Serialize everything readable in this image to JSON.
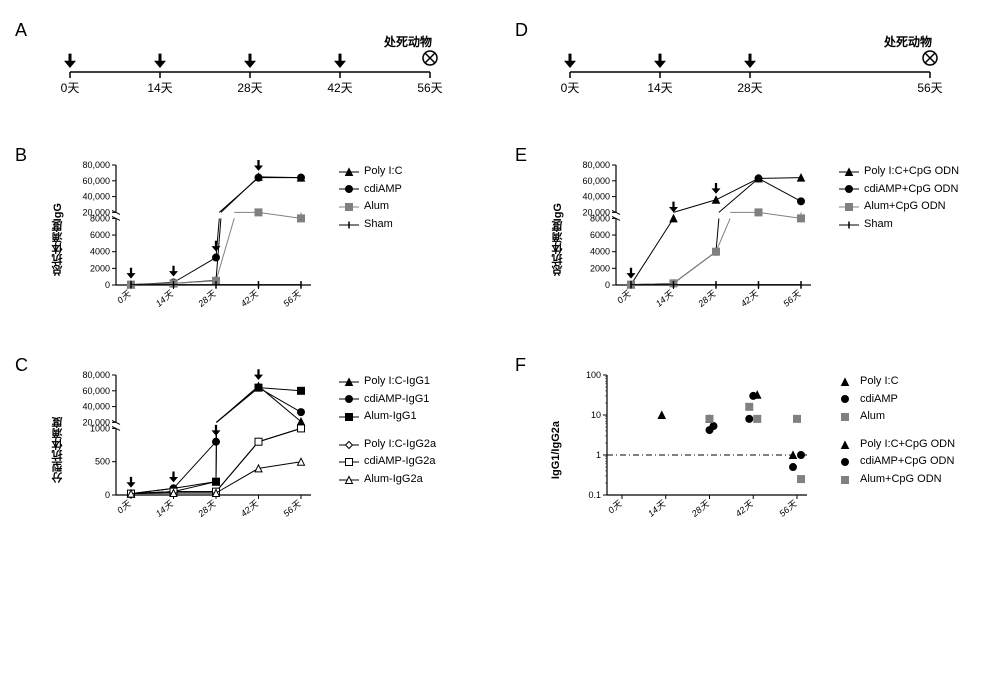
{
  "panelA": {
    "label": "A",
    "days": [
      "0天",
      "14天",
      "28天",
      "42天",
      "56天"
    ],
    "arrows_at": [
      0,
      14,
      28,
      42
    ],
    "end_label": "处死动物",
    "end_at": 56
  },
  "panelD": {
    "label": "D",
    "days": [
      "0天",
      "14天",
      "28天",
      "56天"
    ],
    "arrows_at": [
      0,
      14,
      28
    ],
    "end_label": "处死动物",
    "end_at": 56
  },
  "panelB": {
    "label": "B",
    "ylabel": "总抗体滴度IgG",
    "x_categories": [
      "0天",
      "14天",
      "28天",
      "42天",
      "56天"
    ],
    "y_break": true,
    "y_lower_max": 8000,
    "y_lower_ticks": [
      0,
      2000,
      4000,
      6000,
      8000
    ],
    "y_upper_min": 20000,
    "y_upper_max": 80000,
    "y_upper_ticks": [
      20000,
      40000,
      60000,
      80000
    ],
    "y_upper_tick_labels": [
      "20,000",
      "40,000",
      "60,000",
      "80,000"
    ],
    "legend": [
      {
        "label": "Poly I:C",
        "marker": "triangle",
        "filled": true
      },
      {
        "label": "cdiAMP",
        "marker": "circle",
        "filled": true
      },
      {
        "label": "Alum",
        "marker": "square",
        "filled": true,
        "gray": true
      },
      {
        "label": "Sham",
        "marker": "tick",
        "filled": true
      }
    ],
    "series": [
      {
        "name": "Poly I:C",
        "marker": "triangle",
        "filled": true,
        "points": [
          50,
          200,
          550,
          65000,
          64000
        ]
      },
      {
        "name": "cdiAMP",
        "marker": "circle",
        "filled": true,
        "points": [
          50,
          300,
          3300,
          64000,
          64000
        ]
      },
      {
        "name": "Alum",
        "marker": "square",
        "filled": true,
        "gray": true,
        "points": [
          50,
          200,
          500,
          18000,
          8000
        ]
      },
      {
        "name": "Sham",
        "marker": "tick",
        "filled": true,
        "points": [
          50,
          50,
          50,
          50,
          50
        ]
      }
    ],
    "arrows_at_x_idx": [
      0,
      1,
      2,
      3
    ]
  },
  "panelE": {
    "label": "E",
    "ylabel": "总抗体滴度IgG",
    "x_categories": [
      "0天",
      "14天",
      "28天",
      "42天",
      "56天"
    ],
    "y_break": true,
    "y_lower_max": 8000,
    "y_lower_ticks": [
      0,
      2000,
      4000,
      6000,
      8000
    ],
    "y_upper_min": 20000,
    "y_upper_max": 80000,
    "y_upper_ticks": [
      20000,
      40000,
      60000,
      80000
    ],
    "y_upper_tick_labels": [
      "20,000",
      "40,000",
      "60,000",
      "80,000"
    ],
    "legend": [
      {
        "label": "Poly I:C+CpG ODN",
        "marker": "triangle",
        "filled": true
      },
      {
        "label": "cdiAMP+CpG ODN",
        "marker": "circle",
        "filled": true
      },
      {
        "label": "Alum+CpG ODN",
        "marker": "square",
        "filled": true,
        "gray": true
      },
      {
        "label": "Sham",
        "marker": "tick",
        "filled": true
      }
    ],
    "series": [
      {
        "name": "Poly I:C+CpG",
        "marker": "triangle",
        "filled": true,
        "points": [
          50,
          8000,
          36000,
          63000,
          64000
        ]
      },
      {
        "name": "cdiAMP+CpG",
        "marker": "circle",
        "filled": true,
        "points": [
          50,
          200,
          4000,
          63000,
          34000
        ]
      },
      {
        "name": "Alum+CpG",
        "marker": "square",
        "filled": true,
        "gray": true,
        "points": [
          50,
          200,
          4000,
          16000,
          8000
        ]
      },
      {
        "name": "Sham",
        "marker": "tick",
        "filled": true,
        "points": [
          50,
          50,
          50,
          50,
          50
        ]
      }
    ],
    "arrows_at_x_idx": [
      0,
      1,
      2
    ]
  },
  "panelC": {
    "label": "C",
    "ylabel": "分型抗体滴度",
    "x_categories": [
      "0天",
      "14天",
      "28天",
      "42天",
      "56天"
    ],
    "y_break": true,
    "y_lower_max": 1000,
    "y_lower_ticks": [
      0,
      500,
      1000
    ],
    "y_upper_min": 20000,
    "y_upper_max": 80000,
    "y_upper_ticks": [
      20000,
      40000,
      60000,
      80000
    ],
    "y_upper_tick_labels": [
      "20,000",
      "40,000",
      "60,000",
      "80,000"
    ],
    "legend_groups": [
      [
        {
          "label": "Poly I:C-IgG1",
          "marker": "triangle",
          "filled": true
        },
        {
          "label": "cdiAMP-IgG1",
          "marker": "circle",
          "filled": true
        },
        {
          "label": "Alum-IgG1",
          "marker": "square",
          "filled": true
        }
      ],
      [
        {
          "label": "Poly I:C-IgG2a",
          "marker": "diamond",
          "filled": false
        },
        {
          "label": "cdiAMP-IgG2a",
          "marker": "square",
          "filled": false
        },
        {
          "label": "Alum-IgG2a",
          "marker": "triangle",
          "filled": false
        }
      ]
    ],
    "series": [
      {
        "name": "Poly I:C-IgG1",
        "marker": "triangle",
        "filled": true,
        "points": [
          20,
          100,
          200,
          66000,
          21000
        ]
      },
      {
        "name": "cdiAMP-IgG1",
        "marker": "circle",
        "filled": true,
        "points": [
          20,
          100,
          800,
          64000,
          33000
        ]
      },
      {
        "name": "Alum-IgG1",
        "marker": "square",
        "filled": true,
        "points": [
          20,
          50,
          200,
          64000,
          60000
        ]
      },
      {
        "name": "Poly I:C-IgG2a",
        "marker": "diamond",
        "filled": false,
        "points": [
          20,
          50,
          50,
          800,
          1000
        ]
      },
      {
        "name": "cdiAMP-IgG2a",
        "marker": "square",
        "filled": false,
        "points": [
          20,
          50,
          50,
          800,
          1000
        ]
      },
      {
        "name": "Alum-IgG2a",
        "marker": "triangle",
        "filled": false,
        "points": [
          20,
          30,
          30,
          400,
          500
        ]
      }
    ],
    "arrows_at_x_idx": [
      0,
      1,
      2,
      3
    ]
  },
  "panelF": {
    "label": "F",
    "ylabel": "IgG1/IgG2a",
    "x_categories": [
      "0天",
      "14天",
      "28天",
      "42天",
      "56天"
    ],
    "y_log": true,
    "y_min": 0.1,
    "y_max": 100,
    "y_ticks": [
      0.1,
      1,
      10,
      100
    ],
    "hline_at": 1,
    "legend_groups": [
      [
        {
          "label": "Poly I:C",
          "marker": "triangle",
          "filled": true
        },
        {
          "label": "cdiAMP",
          "marker": "circle",
          "filled": true
        },
        {
          "label": "Alum",
          "marker": "square",
          "filled": true,
          "gray": true
        }
      ],
      [
        {
          "label": "Poly I:C+CpG ODN",
          "marker": "triangle",
          "filled": true
        },
        {
          "label": "cdiAMP+CpG ODN",
          "marker": "circle",
          "filled": true
        },
        {
          "label": "Alum+CpG ODN",
          "marker": "square",
          "filled": true,
          "gray": true
        }
      ]
    ],
    "points": [
      {
        "x_idx": 1,
        "y": 10,
        "marker": "triangle",
        "filled": true
      },
      {
        "x_idx": 2,
        "y": 8,
        "marker": "triangle",
        "filled": true
      },
      {
        "x_idx": 3,
        "y": 32,
        "marker": "triangle",
        "filled": true
      },
      {
        "x_idx": 4,
        "y": 1.0,
        "marker": "triangle",
        "filled": true
      },
      {
        "x_idx": 2,
        "y": 4.2,
        "marker": "circle",
        "filled": true
      },
      {
        "x_idx": 2,
        "y": 5.3,
        "marker": "circle",
        "filled": true
      },
      {
        "x_idx": 3,
        "y": 8,
        "marker": "circle",
        "filled": true
      },
      {
        "x_idx": 3,
        "y": 30,
        "marker": "circle",
        "filled": true
      },
      {
        "x_idx": 4,
        "y": 1.0,
        "marker": "circle",
        "filled": true
      },
      {
        "x_idx": 4,
        "y": 0.5,
        "marker": "circle",
        "filled": true
      },
      {
        "x_idx": 2,
        "y": 8,
        "marker": "square",
        "filled": true,
        "gray": true
      },
      {
        "x_idx": 3,
        "y": 8,
        "marker": "square",
        "filled": true,
        "gray": true
      },
      {
        "x_idx": 3,
        "y": 16,
        "marker": "square",
        "filled": true,
        "gray": true
      },
      {
        "x_idx": 4,
        "y": 8,
        "marker": "square",
        "filled": true,
        "gray": true
      },
      {
        "x_idx": 4,
        "y": 0.25,
        "marker": "square",
        "filled": true,
        "gray": true
      }
    ]
  },
  "colors": {
    "black": "#000000",
    "gray": "#808080"
  }
}
